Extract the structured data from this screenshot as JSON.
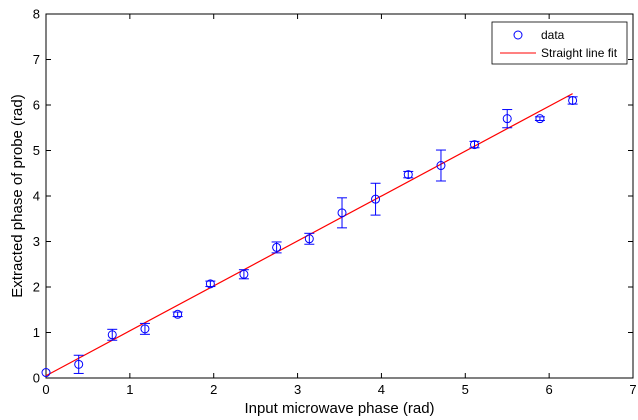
{
  "chart_data": {
    "type": "scatter",
    "xlabel": "Input microwave phase (rad)",
    "ylabel": "Extracted phase of probe (rad)",
    "xlim": [
      0,
      7
    ],
    "ylim": [
      0,
      8
    ],
    "xticks": [
      "0",
      "1",
      "2",
      "3",
      "4",
      "5",
      "6",
      "7"
    ],
    "yticks": [
      "0",
      "1",
      "2",
      "3",
      "4",
      "5",
      "6",
      "7",
      "8"
    ],
    "grid": false,
    "legend_position": "top-right",
    "series": [
      {
        "name": "data",
        "kind": "points-with-error-bars",
        "color": "#0000ff",
        "points": [
          {
            "x": 0.0,
            "y": 0.12,
            "err": 0.0
          },
          {
            "x": 0.39,
            "y": 0.3,
            "err": 0.2
          },
          {
            "x": 0.79,
            "y": 0.95,
            "err": 0.12
          },
          {
            "x": 1.18,
            "y": 1.08,
            "err": 0.12
          },
          {
            "x": 1.57,
            "y": 1.4,
            "err": 0.05
          },
          {
            "x": 1.96,
            "y": 2.07,
            "err": 0.06
          },
          {
            "x": 2.36,
            "y": 2.28,
            "err": 0.1
          },
          {
            "x": 2.75,
            "y": 2.87,
            "err": 0.12
          },
          {
            "x": 3.14,
            "y": 3.06,
            "err": 0.12
          },
          {
            "x": 3.53,
            "y": 3.63,
            "err": 0.33
          },
          {
            "x": 3.93,
            "y": 3.93,
            "err": 0.35
          },
          {
            "x": 4.32,
            "y": 4.47,
            "err": 0.07
          },
          {
            "x": 4.71,
            "y": 4.67,
            "err": 0.34
          },
          {
            "x": 5.11,
            "y": 5.13,
            "err": 0.07
          },
          {
            "x": 5.5,
            "y": 5.7,
            "err": 0.2
          },
          {
            "x": 5.89,
            "y": 5.7,
            "err": 0.04
          },
          {
            "x": 6.28,
            "y": 6.1,
            "err": 0.08
          }
        ]
      },
      {
        "name": "Straight line fit",
        "kind": "line",
        "color": "#ff0000",
        "x": [
          0,
          6.28
        ],
        "y": [
          0.05,
          6.25
        ]
      }
    ]
  }
}
